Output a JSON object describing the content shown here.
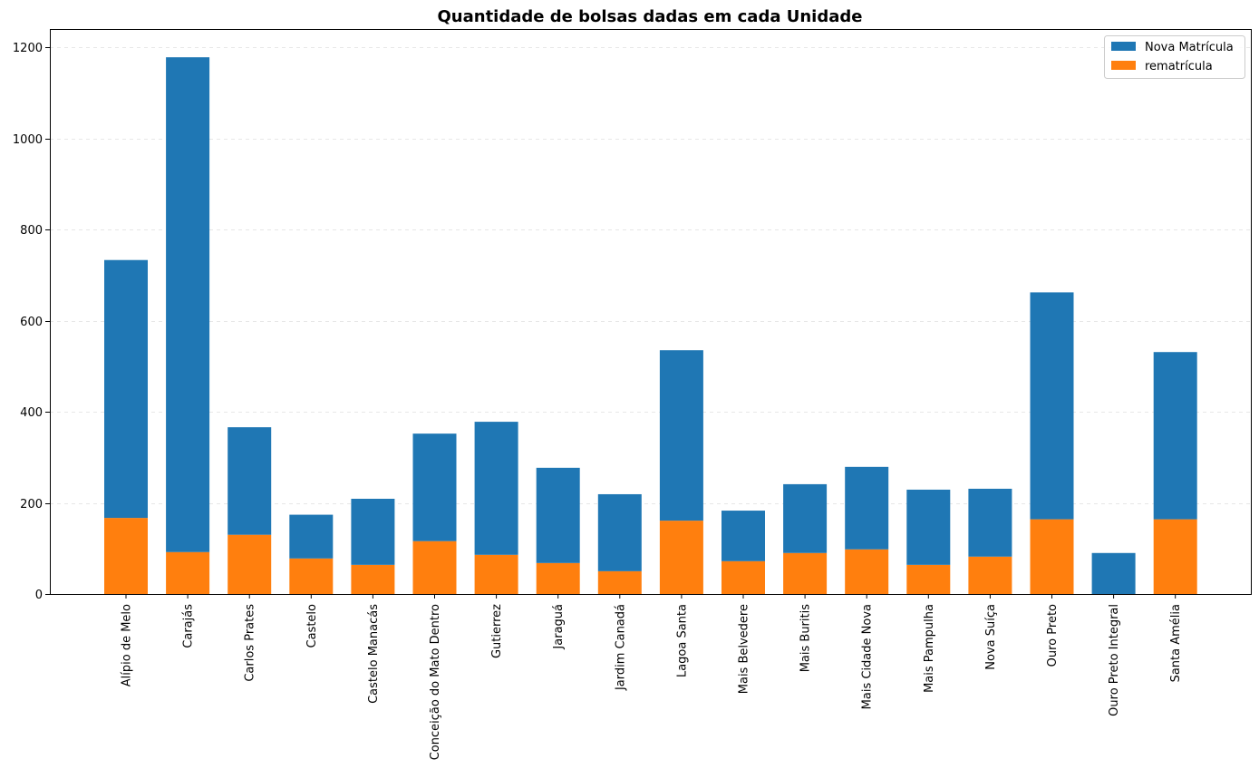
{
  "chart_data": {
    "type": "bar",
    "stacked": true,
    "title": "Quantidade de bolsas dadas em cada Unidade",
    "xlabel": "",
    "ylabel": "",
    "ylim": [
      0,
      1240
    ],
    "yticks": [
      0,
      200,
      400,
      600,
      800,
      1000,
      1200
    ],
    "grid": "y-dashed",
    "legend_position": "top-right",
    "categories": [
      "Alípio de Melo",
      "Carajás",
      "Carlos Prates",
      "Castelo",
      "Castelo Manacás",
      "Conceição do Mato Dentro",
      "Gutierrez",
      "Jaraguá",
      "Jardim Canadá",
      "Lagoa Santa",
      "Mais Belvedere",
      "Mais Buritis",
      "Mais Cidade Nova",
      "Mais Pampulha",
      "Nova Suíça",
      "Ouro Preto",
      "Ouro Preto Integral",
      "Santa Amélia"
    ],
    "series": [
      {
        "name": "rematrícula",
        "color": "#ff7f0e",
        "values": [
          167,
          92,
          130,
          78,
          64,
          116,
          86,
          68,
          50,
          161,
          72,
          90,
          98,
          64,
          82,
          164,
          0,
          164
        ]
      },
      {
        "name": "Nova Matrícula",
        "color": "#1f77b4",
        "values": [
          566,
          1086,
          236,
          96,
          145,
          236,
          292,
          209,
          169,
          374,
          111,
          151,
          181,
          165,
          149,
          498,
          90,
          367
        ]
      }
    ],
    "legend": [
      {
        "label": "Nova Matrícula",
        "color": "#1f77b4"
      },
      {
        "label": "rematrícula",
        "color": "#ff7f0e"
      }
    ]
  }
}
